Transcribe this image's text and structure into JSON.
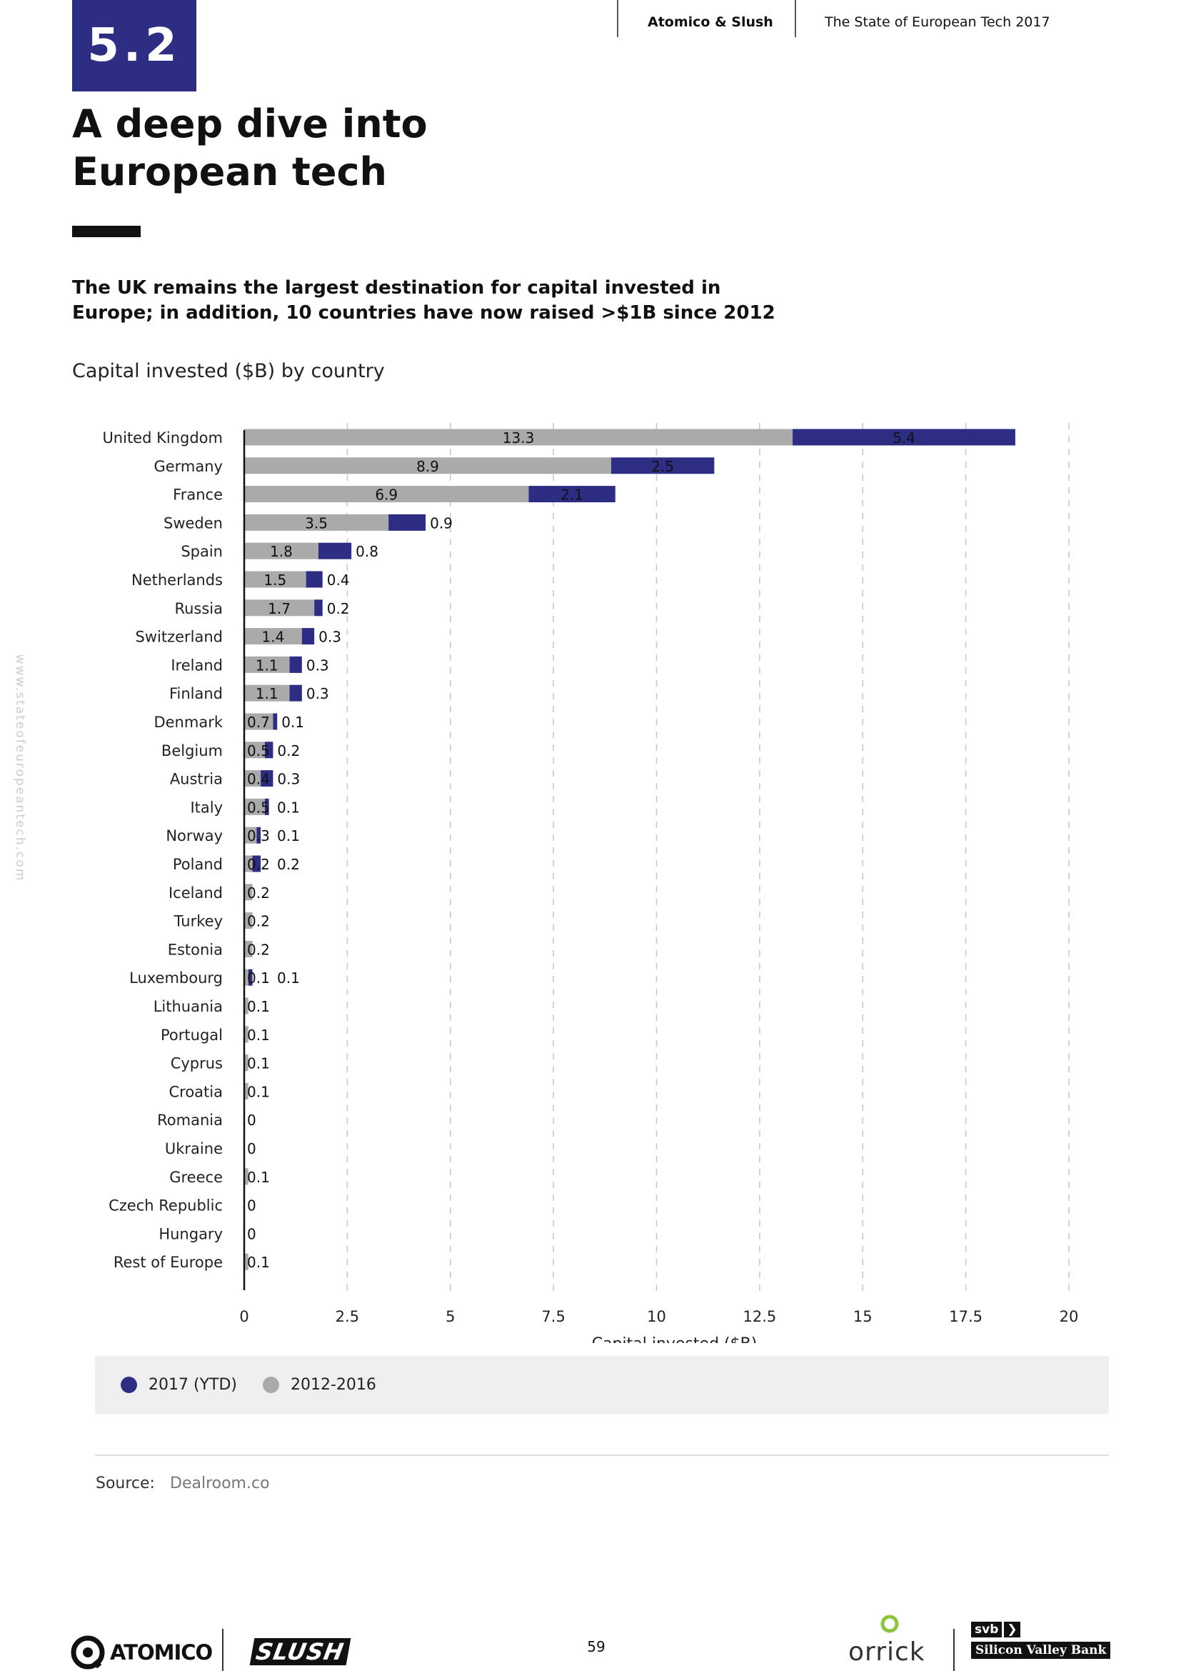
{
  "header": {
    "section_number": "5.2",
    "brand": "Atomico & Slush",
    "report_title": "The State of European Tech 2017"
  },
  "title": {
    "line1": "A deep dive into",
    "line2": "European tech"
  },
  "subtitle": {
    "line1": "The UK remains the largest destination for capital invested in",
    "line2": "Europe; in addition, 10 countries have now raised >$1B since 2012"
  },
  "chart_label": "Capital invested ($B) by country",
  "chart_data": {
    "type": "bar",
    "orientation": "horizontal",
    "stacked": true,
    "title": "Capital invested ($B) by country",
    "xlabel": "Capital invested ($B)",
    "ylabel": "",
    "xlim": [
      0,
      20
    ],
    "xticks": [
      "0",
      "2.5",
      "5",
      "7.5",
      "10",
      "12.5",
      "15",
      "17.5",
      "20"
    ],
    "grid": "vertical dashed",
    "categories": [
      "United Kingdom",
      "Germany",
      "France",
      "Sweden",
      "Spain",
      "Netherlands",
      "Russia",
      "Switzerland",
      "Ireland",
      "Finland",
      "Denmark",
      "Belgium",
      "Austria",
      "Italy",
      "Norway",
      "Poland",
      "Iceland",
      "Turkey",
      "Estonia",
      "Luxembourg",
      "Lithuania",
      "Portugal",
      "Cyprus",
      "Croatia",
      "Romania",
      "Ukraine",
      "Greece",
      "Czech Republic",
      "Hungary",
      "Rest of Europe"
    ],
    "series": [
      {
        "name": "2012-2016",
        "color": "#aaaaaa",
        "values": [
          13.3,
          8.9,
          6.9,
          3.5,
          1.8,
          1.5,
          1.7,
          1.4,
          1.1,
          1.1,
          0.7,
          0.5,
          0.4,
          0.5,
          0.3,
          0.2,
          0.2,
          0.2,
          0.2,
          0.1,
          0.1,
          0.1,
          0.1,
          0.1,
          0,
          0,
          0.1,
          0,
          0,
          0.1
        ]
      },
      {
        "name": "2017 (YTD)",
        "color": "#2e2d84",
        "values": [
          5.4,
          2.5,
          2.1,
          0.9,
          0.8,
          0.4,
          0.2,
          0.3,
          0.3,
          0.3,
          0.1,
          0.2,
          0.3,
          0.1,
          0.1,
          0.2,
          null,
          null,
          null,
          0.1,
          null,
          null,
          null,
          null,
          null,
          null,
          null,
          null,
          null,
          null
        ]
      }
    ],
    "legend": "bottom-left"
  },
  "legend": [
    {
      "label": "2017 (YTD)",
      "color": "#2e2d84"
    },
    {
      "label": "2012-2016",
      "color": "#aaaaaa"
    }
  ],
  "source": {
    "label": "Source:",
    "value": "Dealroom.co"
  },
  "side_url": "www.stateofeuropeantech.com",
  "footer": {
    "page_number": "59",
    "logo_atomico": "ATOMICO",
    "logo_slush": "SLUSH",
    "logo_orrick": "orrick",
    "logo_svb": "svb",
    "logo_svb_name": "Silicon Valley Bank"
  }
}
